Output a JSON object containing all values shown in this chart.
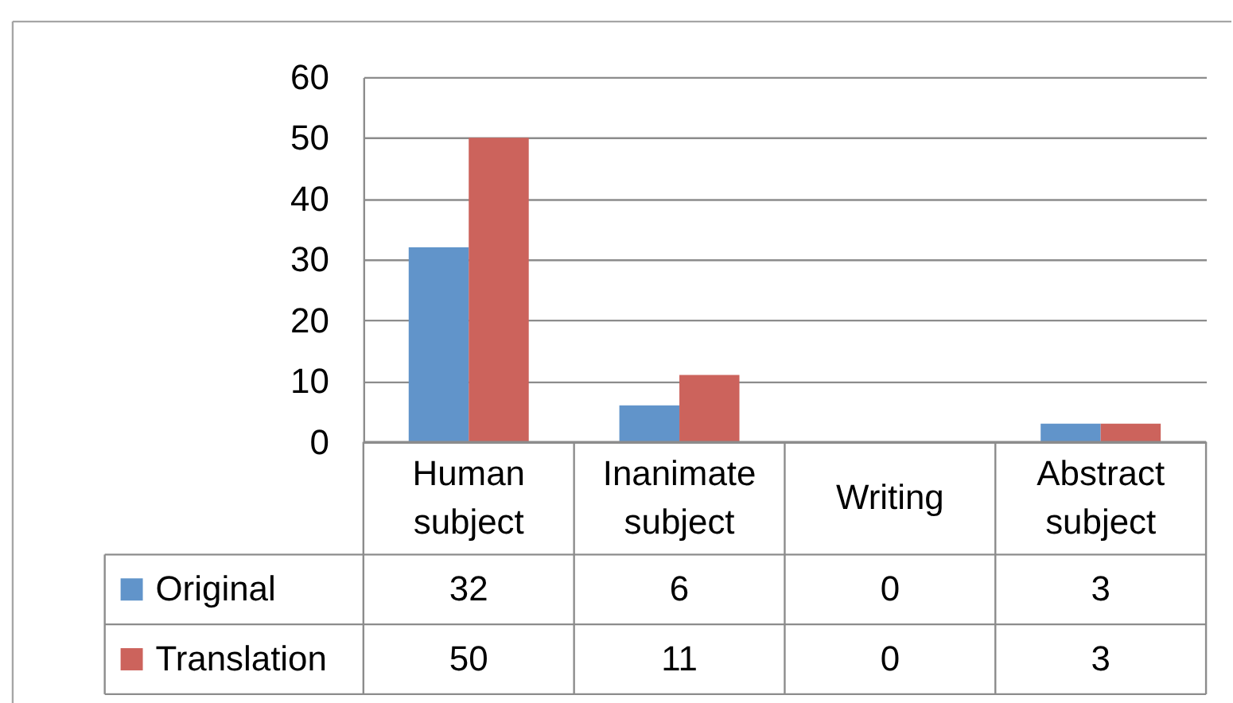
{
  "chart_data": {
    "type": "bar",
    "categories": [
      "Human subject",
      "Inanimate subject",
      "Writing",
      "Abstract subject"
    ],
    "series": [
      {
        "name": "Original",
        "color": "#6194ca",
        "values": [
          32,
          6,
          0,
          3
        ]
      },
      {
        "name": "Translation",
        "color": "#cc635c",
        "values": [
          50,
          11,
          0,
          3
        ]
      }
    ],
    "ylim": [
      0,
      60
    ],
    "yticks": [
      0,
      10,
      20,
      30,
      40,
      50,
      60
    ],
    "grid": "y",
    "legend": "bottom left",
    "data_labels": true
  }
}
